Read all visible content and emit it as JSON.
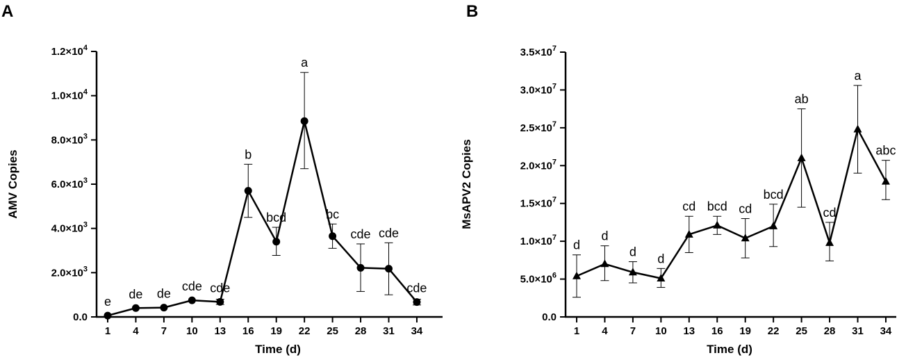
{
  "chart_data": [
    {
      "type": "line",
      "panel": "A",
      "title": "",
      "xlabel": "Time (d)",
      "ylabel": "AMV Copies",
      "x": [
        1,
        4,
        7,
        10,
        13,
        16,
        19,
        22,
        25,
        28,
        31,
        34
      ],
      "ylim": [
        0,
        12000
      ],
      "y_ticks": [
        {
          "value": 0,
          "mant": "0.0",
          "exp": ""
        },
        {
          "value": 2000,
          "mant": "2.0×10",
          "exp": "3"
        },
        {
          "value": 4000,
          "mant": "4.0×10",
          "exp": "3"
        },
        {
          "value": 6000,
          "mant": "6.0×10",
          "exp": "3"
        },
        {
          "value": 8000,
          "mant": "8.0×10",
          "exp": "3"
        },
        {
          "value": 10000,
          "mant": "1.0×10",
          "exp": "4"
        },
        {
          "value": 12000,
          "mant": "1.2×10",
          "exp": "4"
        }
      ],
      "marker": "circle",
      "series": [
        {
          "name": "AMV",
          "values": [
            60,
            400,
            420,
            750,
            680,
            5700,
            3400,
            8850,
            3650,
            2220,
            2180,
            670
          ],
          "err_upper": [
            60,
            400,
            420,
            750,
            800,
            6900,
            4050,
            11050,
            4200,
            3300,
            3350,
            800
          ],
          "err_lower": [
            60,
            400,
            420,
            750,
            560,
            4500,
            2780,
            6700,
            3100,
            1150,
            1000,
            540
          ],
          "labels": [
            "e",
            "de",
            "de",
            "cde",
            "cde",
            "b",
            "bcd",
            "a",
            "bc",
            "cde",
            "cde",
            "cde"
          ]
        }
      ]
    },
    {
      "type": "line",
      "panel": "B",
      "title": "",
      "xlabel": "Time (d)",
      "ylabel": "MsAPV2 Copies",
      "x": [
        1,
        4,
        7,
        10,
        13,
        16,
        19,
        22,
        25,
        28,
        31,
        34
      ],
      "ylim": [
        0,
        35000000
      ],
      "y_ticks": [
        {
          "value": 0,
          "mant": "0.0",
          "exp": ""
        },
        {
          "value": 5000000,
          "mant": "5.0×10",
          "exp": "6"
        },
        {
          "value": 10000000,
          "mant": "1.0×10",
          "exp": "7"
        },
        {
          "value": 15000000,
          "mant": "1.5×10",
          "exp": "7"
        },
        {
          "value": 20000000,
          "mant": "2.0×10",
          "exp": "7"
        },
        {
          "value": 25000000,
          "mant": "2.5×10",
          "exp": "7"
        },
        {
          "value": 30000000,
          "mant": "3.0×10",
          "exp": "7"
        },
        {
          "value": 35000000,
          "mant": "3.5×10",
          "exp": "7"
        }
      ],
      "marker": "triangle",
      "series": [
        {
          "name": "MsAPV2",
          "values": [
            5400000,
            7000000,
            5900000,
            5100000,
            10900000,
            12100000,
            10400000,
            12000000,
            21000000,
            9800000,
            24800000,
            17900000
          ],
          "err_upper": [
            8200000,
            9400000,
            7300000,
            6400000,
            13300000,
            13300000,
            13000000,
            14900000,
            27500000,
            12500000,
            30600000,
            20700000
          ],
          "err_lower": [
            2600000,
            4800000,
            4500000,
            3900000,
            8500000,
            10900000,
            7800000,
            9300000,
            14500000,
            7400000,
            19000000,
            15500000
          ],
          "labels": [
            "d",
            "d",
            "d",
            "d",
            "cd",
            "bcd",
            "cd",
            "bcd",
            "ab",
            "cd",
            "a",
            "abc"
          ]
        }
      ]
    }
  ]
}
